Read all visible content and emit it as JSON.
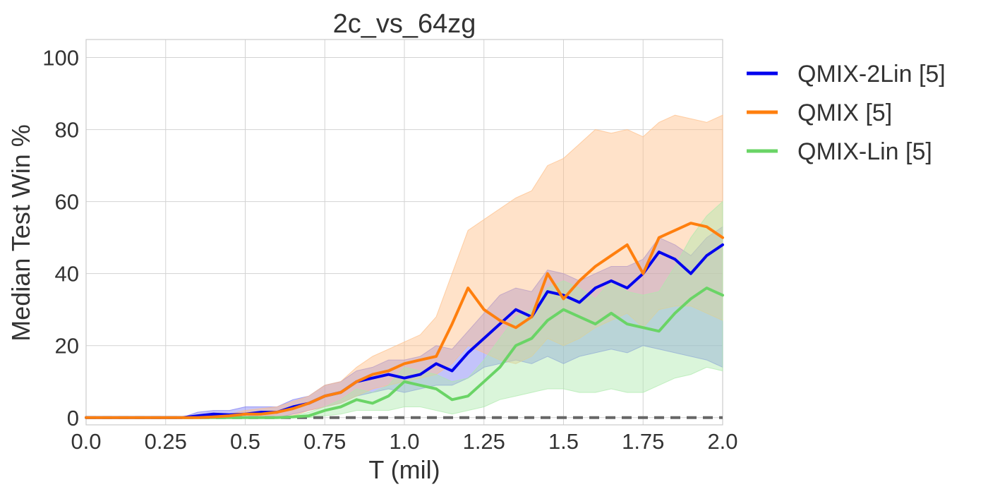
{
  "chart_data": {
    "type": "line",
    "title": "2c_vs_64zg",
    "xlabel": "T (mil)",
    "ylabel": "Median Test Win %",
    "xlim": [
      0,
      2.0
    ],
    "ylim": [
      -2,
      105
    ],
    "xticks": [
      "0.0",
      "0.25",
      "0.5",
      "0.75",
      "1.0",
      "1.25",
      "1.5",
      "1.75",
      "2.0"
    ],
    "yticks": [
      "0",
      "20",
      "40",
      "60",
      "80",
      "100"
    ],
    "grid": true,
    "legend_position": "outside-right",
    "baseline": {
      "y": 0,
      "color": "#666666",
      "style": "dashed"
    },
    "x": [
      0.0,
      0.1,
      0.2,
      0.3,
      0.35,
      0.4,
      0.45,
      0.5,
      0.55,
      0.6,
      0.65,
      0.7,
      0.75,
      0.8,
      0.85,
      0.9,
      0.95,
      1.0,
      1.05,
      1.1,
      1.15,
      1.2,
      1.25,
      1.3,
      1.35,
      1.4,
      1.45,
      1.5,
      1.55,
      1.6,
      1.65,
      1.7,
      1.75,
      1.8,
      1.85,
      1.9,
      1.95,
      2.0
    ],
    "series": [
      {
        "name": "QMIX-2Lin [5]",
        "color": "#0000ee",
        "fill": "#7b7bf5",
        "values": [
          0,
          0,
          0,
          0,
          0.5,
          1,
          0.8,
          1,
          1.5,
          1.5,
          3,
          4,
          6,
          7,
          10,
          11,
          12,
          11,
          12,
          15,
          13,
          18,
          22,
          26,
          30,
          28,
          35,
          34,
          32,
          36,
          38,
          36,
          40,
          46,
          44,
          40,
          45,
          48
        ],
        "lower": [
          0,
          0,
          0,
          0,
          0,
          0,
          0,
          0,
          0,
          0,
          1,
          2,
          3,
          4,
          6,
          7,
          8,
          7,
          8,
          9,
          9,
          11,
          14,
          15,
          16,
          15,
          17,
          15,
          17,
          18,
          19,
          18,
          20,
          19,
          18,
          17,
          16,
          14
        ],
        "upper": [
          0,
          0,
          0,
          0,
          1.5,
          2,
          2,
          3,
          3,
          3,
          5,
          6,
          9,
          10,
          13,
          14,
          16,
          16,
          17,
          20,
          19,
          24,
          29,
          34,
          36,
          35,
          41,
          40,
          38,
          40,
          42,
          42,
          44,
          50,
          48,
          45,
          50,
          53
        ]
      },
      {
        "name": "QMIX [5]",
        "color": "#ff7f0e",
        "fill": "#ffbf87",
        "values": [
          0,
          0,
          0,
          0,
          0,
          0.2,
          0.5,
          1,
          1,
          1.5,
          2.5,
          4,
          6,
          7,
          10,
          12,
          13,
          15,
          16,
          17,
          26,
          36,
          30,
          27,
          25,
          28,
          40,
          33,
          38,
          42,
          45,
          48,
          40,
          50,
          52,
          54,
          53,
          50
        ],
        "lower": [
          0,
          0,
          0,
          0,
          0,
          0,
          0,
          0,
          0,
          0,
          0.5,
          2,
          3,
          4,
          6,
          8,
          9,
          10,
          11,
          12,
          15,
          20,
          18,
          16,
          15,
          17,
          22,
          20,
          22,
          25,
          27,
          29,
          25,
          30,
          31,
          31,
          29,
          27
        ],
        "upper": [
          0,
          0,
          0,
          0,
          0,
          0.5,
          1,
          2,
          2.5,
          3,
          4.5,
          6,
          9,
          10,
          14,
          17,
          19,
          21,
          23,
          28,
          40,
          52,
          55,
          58,
          61,
          63,
          70,
          72,
          76,
          80,
          79,
          80,
          78,
          82,
          84,
          83,
          82,
          84
        ]
      },
      {
        "name": "QMIX-Lin [5]",
        "color": "#6ad466",
        "fill": "#aee9ac",
        "values": [
          0,
          0,
          0,
          0,
          0,
          0,
          0,
          0,
          0,
          0,
          0.2,
          0.5,
          2,
          3,
          5,
          4,
          6,
          10,
          9,
          8,
          5,
          6,
          10,
          14,
          20,
          22,
          27,
          30,
          28,
          26,
          29,
          26,
          25,
          24,
          29,
          33,
          36,
          34
        ],
        "lower": [
          0,
          0,
          0,
          0,
          0,
          0,
          0,
          0,
          0,
          0,
          0,
          0,
          0.5,
          1,
          2,
          2,
          2,
          3,
          3,
          2,
          1,
          2,
          3,
          5,
          6,
          7,
          8,
          8,
          7,
          7,
          8,
          7,
          7,
          9,
          11,
          12,
          14,
          13
        ],
        "upper": [
          0,
          0,
          0,
          0,
          0,
          0,
          0,
          0,
          0,
          0,
          0.5,
          1.5,
          3,
          5,
          8,
          7,
          9,
          14,
          13,
          12,
          10,
          11,
          16,
          22,
          28,
          30,
          36,
          38,
          36,
          33,
          38,
          35,
          34,
          35,
          42,
          50,
          56,
          60
        ]
      }
    ]
  }
}
